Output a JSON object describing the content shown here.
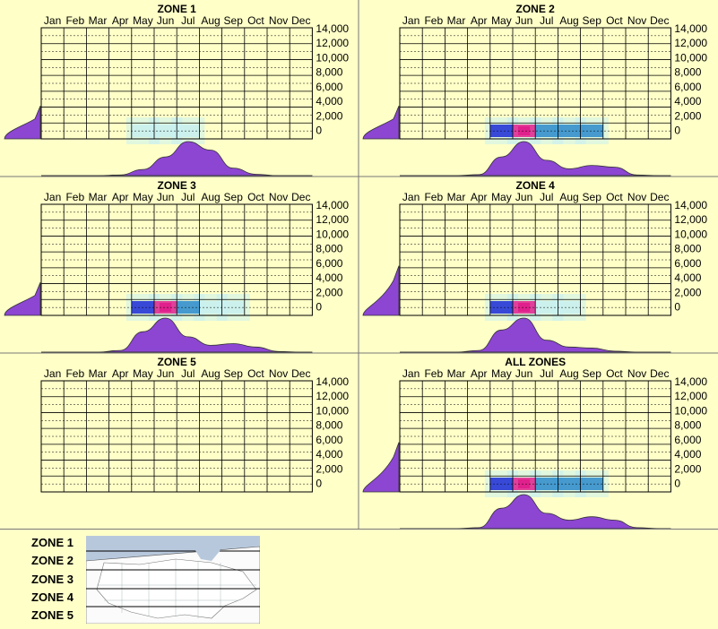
{
  "months": [
    "Jan",
    "Feb",
    "Mar",
    "Apr",
    "May",
    "Jun",
    "Jul",
    "Aug",
    "Sep",
    "Oct",
    "Nov",
    "Dec"
  ],
  "y_ticks": [
    "14,000",
    "12,000",
    "10,000",
    "8,000",
    "6,000",
    "4,000",
    "2,000",
    "0"
  ],
  "colors": {
    "background": "#ffffc8",
    "density": "#8c46d2",
    "heat_low": "#c8f0f0",
    "heat_mid": "#2a8acb",
    "heat_high": "#1a2ad6",
    "heat_peak": "#e0208c"
  },
  "chart_data": [
    {
      "type": "heatmap",
      "title": "ZONE 1",
      "x": "month",
      "y": "elevation",
      "ylim": [
        0,
        14000
      ],
      "month_density": [
        0,
        0,
        0,
        0.02,
        0.18,
        0.55,
        1.0,
        0.75,
        0.22,
        0.04,
        0,
        0
      ],
      "elevation_density_peak_band": "0-2,000",
      "hot_cells": [
        {
          "month": "Jun",
          "elev": 1000,
          "intensity": 0.25
        },
        {
          "month": "Jul",
          "elev": 1000,
          "intensity": 0.3
        },
        {
          "month": "May",
          "elev": 1000,
          "intensity": 0.15
        }
      ]
    },
    {
      "type": "heatmap",
      "title": "ZONE 2",
      "x": "month",
      "y": "elevation",
      "ylim": [
        0,
        14000
      ],
      "month_density": [
        0,
        0,
        0,
        0.03,
        0.55,
        1.0,
        0.45,
        0.2,
        0.3,
        0.25,
        0.02,
        0
      ],
      "elevation_density_peak_band": "0-2,000",
      "hot_cells": [
        {
          "month": "Jun",
          "elev": 1000,
          "intensity": 1.0
        },
        {
          "month": "May",
          "elev": 1000,
          "intensity": 0.75
        },
        {
          "month": "Jul",
          "elev": 1000,
          "intensity": 0.6
        },
        {
          "month": "Aug",
          "elev": 1000,
          "intensity": 0.5
        },
        {
          "month": "Sep",
          "elev": 1000,
          "intensity": 0.5
        }
      ]
    },
    {
      "type": "heatmap",
      "title": "ZONE 3",
      "x": "month",
      "y": "elevation",
      "ylim": [
        0,
        14000
      ],
      "month_density": [
        0,
        0,
        0,
        0.05,
        0.6,
        1.0,
        0.45,
        0.2,
        0.25,
        0.15,
        0.02,
        0
      ],
      "elevation_density_peak_band": "0-2,000",
      "hot_cells": [
        {
          "month": "Jun",
          "elev": 1000,
          "intensity": 1.0
        },
        {
          "month": "May",
          "elev": 1000,
          "intensity": 0.8
        },
        {
          "month": "Jul",
          "elev": 1000,
          "intensity": 0.5
        },
        {
          "month": "Aug",
          "elev": 1000,
          "intensity": 0.35
        },
        {
          "month": "Sep",
          "elev": 1000,
          "intensity": 0.35
        }
      ]
    },
    {
      "type": "heatmap",
      "title": "ZONE 4",
      "x": "month",
      "y": "elevation",
      "ylim": [
        0,
        14000
      ],
      "month_density": [
        0,
        0,
        0,
        0.05,
        0.65,
        1.0,
        0.35,
        0.15,
        0.12,
        0.03,
        0,
        0
      ],
      "elevation_density_peak_band": "0-4,000",
      "hot_cells": [
        {
          "month": "Jun",
          "elev": 1000,
          "intensity": 1.0
        },
        {
          "month": "May",
          "elev": 1000,
          "intensity": 0.85
        },
        {
          "month": "Jul",
          "elev": 1000,
          "intensity": 0.35
        },
        {
          "month": "Aug",
          "elev": 1000,
          "intensity": 0.2
        }
      ]
    },
    {
      "type": "heatmap",
      "title": "ZONE 5",
      "x": "month",
      "y": "elevation",
      "ylim": [
        0,
        14000
      ],
      "month_density": [],
      "hot_cells": []
    },
    {
      "type": "heatmap",
      "title": "ALL ZONES",
      "x": "month",
      "y": "elevation",
      "ylim": [
        0,
        14000
      ],
      "month_density": [
        0,
        0,
        0,
        0.03,
        0.6,
        1.0,
        0.45,
        0.25,
        0.35,
        0.25,
        0.03,
        0
      ],
      "elevation_density_peak_band": "0-4,000",
      "hot_cells": [
        {
          "month": "Jun",
          "elev": 1000,
          "intensity": 1.0
        },
        {
          "month": "May",
          "elev": 1000,
          "intensity": 0.8
        },
        {
          "month": "Jul",
          "elev": 1000,
          "intensity": 0.6
        },
        {
          "month": "Aug",
          "elev": 1000,
          "intensity": 0.5
        },
        {
          "month": "Sep",
          "elev": 1000,
          "intensity": 0.55
        }
      ]
    }
  ],
  "legend": {
    "zones": [
      "ZONE 1",
      "ZONE 2",
      "ZONE 3",
      "ZONE 4",
      "ZONE 5"
    ],
    "map_icon": "us-map-icon"
  }
}
